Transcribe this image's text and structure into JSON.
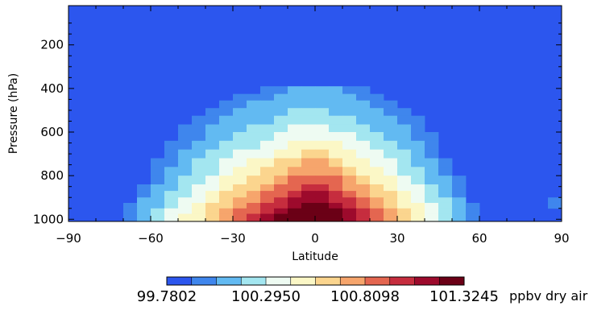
{
  "chart_data": {
    "type": "heatmap",
    "title": "",
    "xlabel": "Latitude",
    "ylabel": "Pressure (hPa)",
    "xlim": [
      -90,
      90
    ],
    "ylim": [
      1010,
      20
    ],
    "x_ticks": [
      -90,
      -60,
      -30,
      0,
      30,
      60,
      90
    ],
    "x_tick_labels": [
      "−90",
      "−60",
      "−30",
      "0",
      "30",
      "60",
      "90"
    ],
    "y_ticks": [
      200,
      400,
      600,
      800,
      1000
    ],
    "y_tick_labels": [
      "200",
      "400",
      "600",
      "800",
      "1000"
    ],
    "x_edges": [
      -90,
      -85,
      -80,
      -75,
      -70,
      -65,
      -60,
      -55,
      -50,
      -45,
      -40,
      -35,
      -30,
      -25,
      -20,
      -15,
      -10,
      -5,
      0,
      5,
      10,
      15,
      20,
      25,
      30,
      35,
      40,
      45,
      50,
      55,
      60,
      65,
      70,
      75,
      80,
      85,
      90
    ],
    "p_edges": [
      20,
      390,
      425,
      455,
      490,
      525,
      565,
      600,
      640,
      680,
      720,
      760,
      800,
      840,
      870,
      900,
      925,
      950,
      975,
      1010
    ],
    "levels": [
      0,
      0,
      0,
      0,
      0,
      0,
      0,
      0,
      0,
      0,
      0,
      0,
      0,
      0,
      0,
      0,
      0,
      0,
      0,
      0,
      0,
      0,
      0,
      0,
      0,
      0,
      0,
      0,
      0,
      0,
      0,
      0,
      0,
      0,
      0,
      0,
      0,
      0,
      0,
      0,
      0,
      0,
      0,
      0,
      0,
      0,
      0,
      0,
      0,
      0,
      0,
      0,
      0,
      0,
      0,
      0,
      0,
      0,
      0,
      0,
      0,
      0,
      0,
      0,
      0,
      0,
      0,
      0,
      0,
      0,
      0,
      0,
      0,
      0,
      0,
      0,
      0,
      0,
      0,
      0,
      0,
      0,
      0,
      0,
      0,
      0,
      0,
      0,
      0,
      0,
      0,
      0,
      0,
      0,
      0,
      0,
      0,
      0,
      0,
      0,
      0,
      0,
      0,
      0,
      0,
      0,
      0,
      0,
      0,
      0,
      0,
      0,
      0,
      0,
      0,
      0,
      0,
      0,
      0,
      0,
      0,
      0,
      0,
      0,
      0,
      0,
      0,
      0,
      0,
      0,
      0,
      0,
      0,
      0,
      0,
      0,
      0,
      0,
      0,
      0,
      0,
      0,
      0,
      0,
      0,
      0,
      0,
      0,
      0,
      0,
      0,
      0,
      0,
      0,
      0,
      0,
      0,
      0,
      0,
      0,
      0,
      0,
      0,
      0,
      0,
      0,
      0,
      0,
      0,
      0,
      0,
      0,
      0,
      0,
      0,
      0,
      0,
      0,
      0,
      0,
      0,
      0,
      0,
      0,
      0,
      0,
      0,
      0,
      0,
      0,
      0,
      0,
      0,
      0,
      0,
      0,
      0,
      0,
      0,
      0,
      0,
      0,
      0,
      0,
      0,
      0,
      0,
      0,
      0,
      0,
      0,
      0,
      0,
      0,
      0,
      0,
      0,
      0,
      0,
      0,
      0,
      0,
      0,
      0,
      0,
      0,
      0,
      0,
      0,
      0,
      0,
      0,
      0,
      0,
      0,
      0,
      0,
      0,
      0,
      0,
      0,
      0,
      0,
      0,
      0,
      0,
      0,
      0,
      0,
      0,
      0,
      0,
      0,
      0,
      0,
      0,
      0,
      0,
      0,
      0,
      0,
      0,
      0,
      0,
      0,
      0,
      0,
      0,
      0,
      0,
      0,
      0,
      0,
      0,
      0,
      0,
      0,
      0,
      0,
      0,
      0,
      0,
      0,
      0,
      0,
      0,
      0,
      0,
      0,
      0,
      0,
      0,
      0,
      0,
      0,
      0,
      0,
      0,
      0,
      0,
      0,
      0,
      0,
      0,
      0,
      0,
      0,
      0,
      0,
      0,
      0,
      0,
      0,
      0,
      0,
      0,
      0,
      0,
      0,
      0,
      0,
      0,
      0,
      0,
      0,
      0,
      0,
      0,
      0,
      0,
      0,
      0,
      0,
      0,
      0,
      0,
      0,
      0,
      0,
      0,
      0,
      0,
      0,
      0,
      0,
      0,
      0,
      0,
      0,
      0,
      0,
      0,
      0,
      0,
      0,
      0,
      0,
      0,
      0,
      0,
      0,
      0,
      0,
      0,
      0,
      0,
      0,
      0,
      0,
      0,
      0,
      0,
      0,
      0,
      0,
      0,
      0,
      0,
      0,
      0,
      0,
      0,
      0,
      0,
      0,
      0,
      0,
      0,
      0,
      0,
      0,
      0,
      0,
      0,
      0,
      0,
      0,
      0,
      0,
      0,
      0,
      0,
      0,
      0,
      0,
      0,
      0,
      0,
      0,
      0,
      0,
      0,
      0,
      0,
      0,
      0,
      0,
      0,
      0,
      0,
      0,
      0,
      0,
      0,
      0,
      0,
      0,
      0,
      0,
      0,
      0,
      0,
      0,
      0,
      0,
      0,
      0,
      0,
      0,
      0,
      0,
      0,
      0,
      0,
      0,
      0,
      0,
      0,
      0,
      0,
      0,
      0,
      0,
      0,
      0,
      0,
      0,
      0,
      0,
      0,
      0,
      0,
      0,
      0,
      0,
      0,
      0,
      0,
      0,
      0,
      0,
      0,
      0,
      0,
      0,
      0,
      0,
      0,
      0,
      0,
      0,
      0,
      0,
      0,
      0,
      0,
      0,
      0,
      0,
      0,
      0,
      0,
      0,
      0,
      0,
      0,
      0,
      0,
      0,
      0,
      0,
      0,
      0,
      0,
      0,
      0,
      0,
      0,
      0,
      0,
      0,
      0,
      0,
      0,
      0,
      0,
      0,
      0,
      0,
      0,
      0,
      0,
      0,
      0,
      0,
      0,
      0,
      0,
      0,
      0,
      0,
      0,
      0,
      0,
      0,
      0,
      0,
      0,
      0,
      0,
      0,
      0,
      0,
      0,
      0,
      0,
      0,
      0,
      0,
      0,
      0,
      0,
      0,
      0,
      0,
      0,
      0,
      0,
      0,
      0,
      0,
      0,
      0,
      0,
      0,
      0,
      0,
      0,
      0,
      0,
      0,
      0,
      0,
      0,
      0,
      0,
      0,
      0,
      0,
      0,
      0,
      0,
      0,
      0,
      0,
      0,
      0,
      0,
      0,
      0,
      0,
      0,
      0,
      0,
      0,
      0,
      0,
      0,
      0,
      0,
      0,
      0,
      0,
      0,
      0,
      0,
      0,
      0,
      0,
      0,
      0,
      0,
      0,
      0,
      0,
      0,
      0,
      0,
      0,
      0,
      0,
      0,
      0,
      0,
      0,
      0,
      0,
      0,
      0,
      0,
      0,
      0,
      0,
      0,
      0,
      0,
      0,
      0,
      0,
      0,
      0,
      0,
      0,
      0,
      0,
      0,
      0,
      0,
      0,
      0,
      0,
      0,
      0,
      0,
      0,
      0,
      0,
      0,
      0,
      0,
      0,
      0,
      0,
      0,
      0,
      0,
      0,
      0,
      0,
      0,
      0,
      0,
      0,
      0,
      0,
      0,
      0,
      0,
      0,
      0,
      0,
      0,
      0,
      0,
      0,
      0,
      0,
      0,
      0,
      0,
      0,
      0,
      0,
      0,
      0,
      0,
      0,
      0,
      0,
      0,
      0,
      0,
      0,
      0,
      0,
      0,
      0,
      0,
      0
    ],
    "colorbar": {
      "colors": [
        "#2c56ee",
        "#3f86ed",
        "#62baf2",
        "#a3e6f0",
        "#eefbf2",
        "#fbf7c6",
        "#fbd58e",
        "#f6a56c",
        "#e46650",
        "#c62d3e",
        "#9d0a2c",
        "#6b0016"
      ],
      "tick_labels": [
        "99.7802",
        "100.2950",
        "100.8098",
        "101.3245"
      ],
      "units": "ppbv dry air"
    }
  }
}
